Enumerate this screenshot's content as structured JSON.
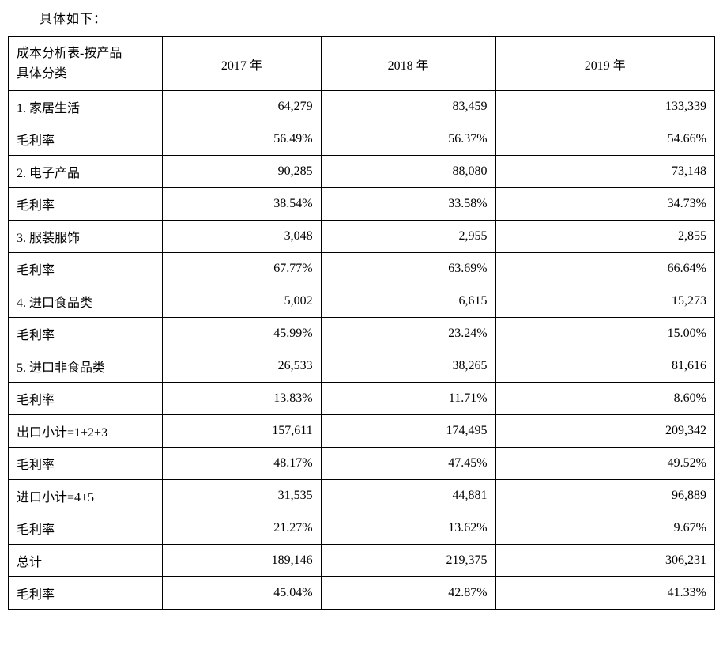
{
  "intro": "具体如下：",
  "header": {
    "label_line1": "成本分析表-按产品",
    "label_line2": "具体分类",
    "y1": "2017 年",
    "y2": "2018 年",
    "y3": "2019 年"
  },
  "rows": [
    {
      "label": " 1. 家居生活",
      "y1": "64,279",
      "y2": "83,459",
      "y3": "133,339"
    },
    {
      "label": "毛利率",
      "y1": "56.49%",
      "y2": "56.37%",
      "y3": "54.66%"
    },
    {
      "label": " 2. 电子产品",
      "y1": "90,285",
      "y2": "88,080",
      "y3": "73,148"
    },
    {
      "label": "毛利率",
      "y1": "38.54%",
      "y2": "33.58%",
      "y3": "34.73%"
    },
    {
      "label": "3.  服装服饰",
      "y1": "3,048",
      "y2": "2,955",
      "y3": "2,855"
    },
    {
      "label": "毛利率",
      "y1": "67.77%",
      "y2": "63.69%",
      "y3": "66.64%"
    },
    {
      "label": "4.  进口食品类",
      "y1": "5,002",
      "y2": "6,615",
      "y3": "15,273"
    },
    {
      "label": "毛利率",
      "y1": "45.99%",
      "y2": "23.24%",
      "y3": "15.00%"
    },
    {
      "label": " 5. 进口非食品类",
      "y1": "26,533",
      "y2": "38,265",
      "y3": "81,616"
    },
    {
      "label": "毛利率",
      "y1": "13.83%",
      "y2": "11.71%",
      "y3": "8.60%"
    },
    {
      "label": " 出口小计=1+2+3",
      "y1": "157,611",
      "y2": "174,495",
      "y3": "209,342"
    },
    {
      "label": "毛利率",
      "y1": "48.17%",
      "y2": "47.45%",
      "y3": "49.52%"
    },
    {
      "label": " 进口小计=4+5",
      "y1": "31,535",
      "y2": "44,881",
      "y3": "96,889"
    },
    {
      "label": "毛利率",
      "y1": "21.27%",
      "y2": "13.62%",
      "y3": "9.67%"
    },
    {
      "label": " 总计",
      "y1": "189,146",
      "y2": "219,375",
      "y3": "306,231"
    },
    {
      "label": "毛利率",
      "y1": "45.04%",
      "y2": "42.87%",
      "y3": "41.33%"
    }
  ]
}
